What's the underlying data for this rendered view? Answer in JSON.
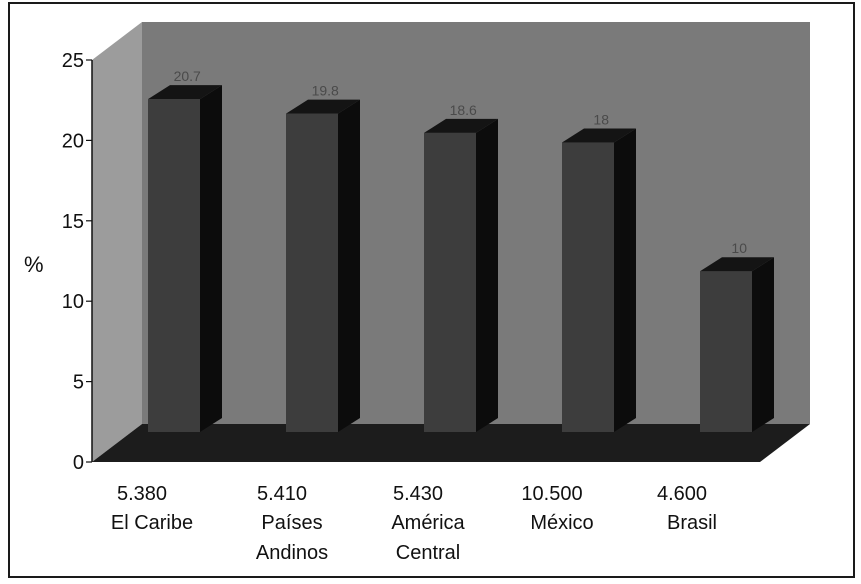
{
  "chart_data": {
    "type": "bar",
    "title": "",
    "xlabel": "",
    "ylabel": "%",
    "ylim": [
      0,
      25
    ],
    "yticks": [
      0,
      5,
      10,
      15,
      20,
      25
    ],
    "grid": false,
    "legend": "none",
    "categories": [
      {
        "number": "5.380",
        "name": [
          "El Caribe"
        ]
      },
      {
        "number": "5.410",
        "name": [
          "Países",
          "Andinos"
        ]
      },
      {
        "number": "5.430",
        "name": [
          "América",
          "Central"
        ]
      },
      {
        "number": "10.500",
        "name": [
          "México"
        ]
      },
      {
        "number": "4.600",
        "name": [
          "Brasil"
        ]
      }
    ],
    "values": [
      20.7,
      19.8,
      18.6,
      18,
      10
    ],
    "data_labels": [
      "20.7",
      "19.8",
      "18.6",
      "18",
      "10"
    ],
    "colors": {
      "plot_bg": "#7a7a7a",
      "plot_side": "#9c9c9c",
      "floor": "#1c1c1c",
      "bar_front": "#3d3d3d",
      "bar_top": "#141414",
      "bar_side": "#0c0c0c"
    }
  }
}
